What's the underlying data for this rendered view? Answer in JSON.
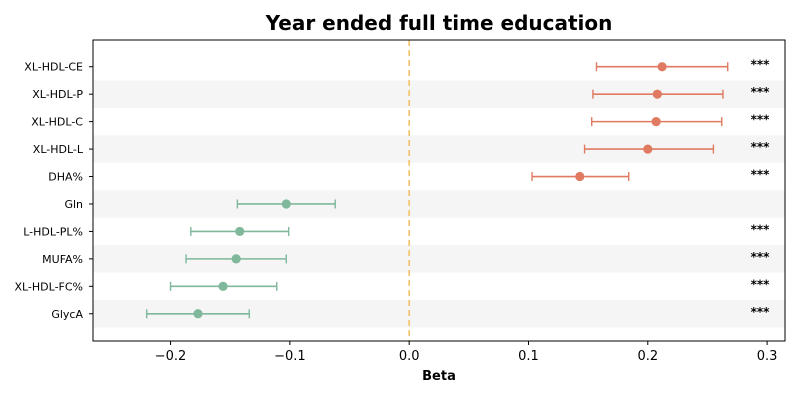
{
  "chart_data": {
    "type": "forest",
    "title": "Year ended full time education",
    "xlabel": "Beta",
    "ylabel": "",
    "xlim": [
      -0.265,
      0.315
    ],
    "xticks": [
      -0.2,
      -0.1,
      0.0,
      0.1,
      0.2,
      0.3
    ],
    "xtick_labels": [
      "−0.2",
      "−0.1",
      "0.0",
      "0.1",
      "0.2",
      "0.3"
    ],
    "reference_line": 0.0,
    "colors": {
      "positive": "#e07b62",
      "negative": "#7fb89b",
      "reference": "#f5c06a",
      "band": "#f5f5f5"
    },
    "rows": [
      {
        "label": "XL-HDL-CE",
        "beta": 0.212,
        "ci_low": 0.157,
        "ci_high": 0.267,
        "sig": "***"
      },
      {
        "label": "XL-HDL-P",
        "beta": 0.208,
        "ci_low": 0.154,
        "ci_high": 0.263,
        "sig": "***"
      },
      {
        "label": "XL-HDL-C",
        "beta": 0.207,
        "ci_low": 0.153,
        "ci_high": 0.262,
        "sig": "***"
      },
      {
        "label": "XL-HDL-L",
        "beta": 0.2,
        "ci_low": 0.147,
        "ci_high": 0.255,
        "sig": "***"
      },
      {
        "label": "DHA%",
        "beta": 0.143,
        "ci_low": 0.103,
        "ci_high": 0.184,
        "sig": "***"
      },
      {
        "label": "Gln",
        "beta": -0.103,
        "ci_low": -0.144,
        "ci_high": -0.062,
        "sig": ""
      },
      {
        "label": "L-HDL-PL%",
        "beta": -0.142,
        "ci_low": -0.183,
        "ci_high": -0.101,
        "sig": "***"
      },
      {
        "label": "MUFA%",
        "beta": -0.145,
        "ci_low": -0.187,
        "ci_high": -0.103,
        "sig": "***"
      },
      {
        "label": "XL-HDL-FC%",
        "beta": -0.156,
        "ci_low": -0.2,
        "ci_high": -0.111,
        "sig": "***"
      },
      {
        "label": "GlycA",
        "beta": -0.177,
        "ci_low": -0.22,
        "ci_high": -0.134,
        "sig": "***"
      }
    ]
  }
}
